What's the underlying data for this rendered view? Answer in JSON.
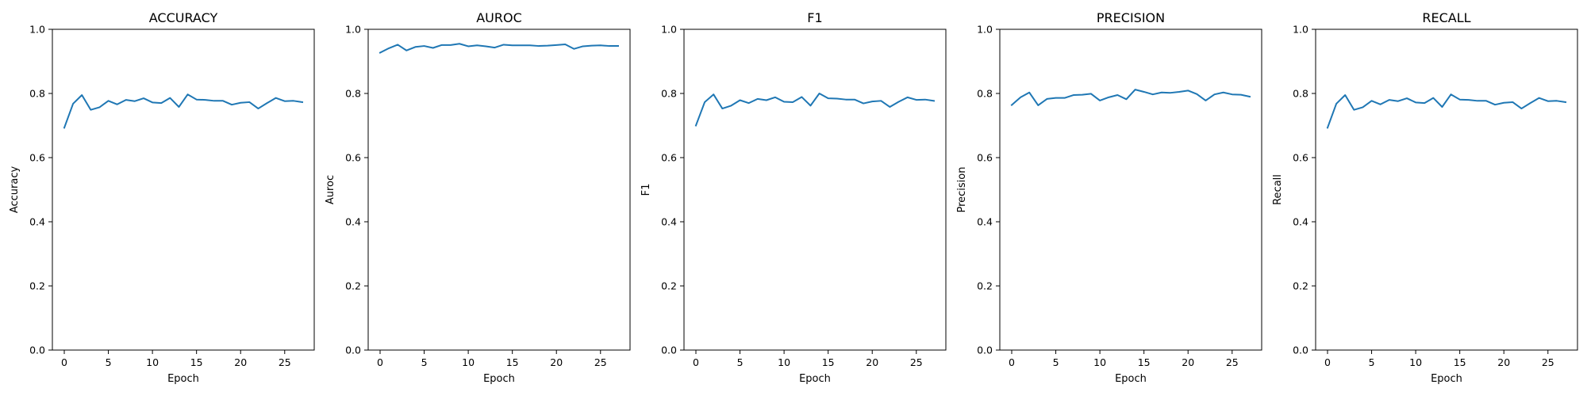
{
  "chart_data": [
    {
      "type": "line",
      "title": "ACCURACY",
      "xlabel": "Epoch",
      "ylabel": "Accuracy",
      "xlim": [
        -1.35,
        28.35
      ],
      "ylim": [
        0.0,
        1.0
      ],
      "xticks": [
        0,
        5,
        10,
        15,
        20,
        25
      ],
      "yticks": [
        0.0,
        0.2,
        0.4,
        0.6,
        0.8,
        1.0
      ],
      "grid": false,
      "color": "#1f77b4",
      "x": [
        0,
        1,
        2,
        3,
        4,
        5,
        6,
        7,
        8,
        9,
        10,
        11,
        12,
        13,
        14,
        15,
        16,
        17,
        18,
        19,
        20,
        21,
        22,
        23,
        24,
        25,
        26,
        27
      ],
      "y": [
        0.693,
        0.768,
        0.795,
        0.749,
        0.757,
        0.777,
        0.766,
        0.78,
        0.776,
        0.785,
        0.772,
        0.77,
        0.786,
        0.758,
        0.797,
        0.781,
        0.78,
        0.777,
        0.777,
        0.765,
        0.771,
        0.773,
        0.753,
        0.77,
        0.786,
        0.776,
        0.777,
        0.773
      ]
    },
    {
      "type": "line",
      "title": "AUROC",
      "xlabel": "Epoch",
      "ylabel": "Auroc",
      "xlim": [
        -1.35,
        28.35
      ],
      "ylim": [
        0.0,
        1.0
      ],
      "xticks": [
        0,
        5,
        10,
        15,
        20,
        25
      ],
      "yticks": [
        0.0,
        0.2,
        0.4,
        0.6,
        0.8,
        1.0
      ],
      "grid": false,
      "color": "#1f77b4",
      "x": [
        0,
        1,
        2,
        3,
        4,
        5,
        6,
        7,
        8,
        9,
        10,
        11,
        12,
        13,
        14,
        15,
        16,
        17,
        18,
        19,
        20,
        21,
        22,
        23,
        24,
        25,
        26,
        27
      ],
      "y": [
        0.927,
        0.941,
        0.952,
        0.934,
        0.945,
        0.948,
        0.942,
        0.951,
        0.951,
        0.955,
        0.947,
        0.95,
        0.947,
        0.943,
        0.952,
        0.95,
        0.95,
        0.95,
        0.948,
        0.949,
        0.951,
        0.953,
        0.939,
        0.947,
        0.949,
        0.95,
        0.948,
        0.948
      ]
    },
    {
      "type": "line",
      "title": "F1",
      "xlabel": "Epoch",
      "ylabel": "F1",
      "xlim": [
        -1.35,
        28.35
      ],
      "ylim": [
        0.0,
        1.0
      ],
      "xticks": [
        0,
        5,
        10,
        15,
        20,
        25
      ],
      "yticks": [
        0.0,
        0.2,
        0.4,
        0.6,
        0.8,
        1.0
      ],
      "grid": false,
      "color": "#1f77b4",
      "x": [
        0,
        1,
        2,
        3,
        4,
        5,
        6,
        7,
        8,
        9,
        10,
        11,
        12,
        13,
        14,
        15,
        16,
        17,
        18,
        19,
        20,
        21,
        22,
        23,
        24,
        25,
        26,
        27
      ],
      "y": [
        0.7,
        0.773,
        0.797,
        0.753,
        0.762,
        0.779,
        0.77,
        0.783,
        0.779,
        0.788,
        0.774,
        0.773,
        0.789,
        0.762,
        0.8,
        0.785,
        0.784,
        0.781,
        0.781,
        0.769,
        0.775,
        0.777,
        0.758,
        0.774,
        0.788,
        0.78,
        0.781,
        0.777
      ]
    },
    {
      "type": "line",
      "title": "PRECISION",
      "xlabel": "Epoch",
      "ylabel": "Precision",
      "xlim": [
        -1.35,
        28.35
      ],
      "ylim": [
        0.0,
        1.0
      ],
      "xticks": [
        0,
        5,
        10,
        15,
        20,
        25
      ],
      "yticks": [
        0.0,
        0.2,
        0.4,
        0.6,
        0.8,
        1.0
      ],
      "grid": false,
      "color": "#1f77b4",
      "x": [
        0,
        1,
        2,
        3,
        4,
        5,
        6,
        7,
        8,
        9,
        10,
        11,
        12,
        13,
        14,
        15,
        16,
        17,
        18,
        19,
        20,
        21,
        22,
        23,
        24,
        25,
        26,
        27
      ],
      "y": [
        0.764,
        0.788,
        0.803,
        0.763,
        0.783,
        0.786,
        0.786,
        0.795,
        0.796,
        0.799,
        0.778,
        0.788,
        0.795,
        0.782,
        0.812,
        0.805,
        0.797,
        0.803,
        0.802,
        0.805,
        0.809,
        0.798,
        0.778,
        0.797,
        0.803,
        0.797,
        0.796,
        0.79
      ]
    },
    {
      "type": "line",
      "title": "RECALL",
      "xlabel": "Epoch",
      "ylabel": "Recall",
      "xlim": [
        -1.35,
        28.35
      ],
      "ylim": [
        0.0,
        1.0
      ],
      "xticks": [
        0,
        5,
        10,
        15,
        20,
        25
      ],
      "yticks": [
        0.0,
        0.2,
        0.4,
        0.6,
        0.8,
        1.0
      ],
      "grid": false,
      "color": "#1f77b4",
      "x": [
        0,
        1,
        2,
        3,
        4,
        5,
        6,
        7,
        8,
        9,
        10,
        11,
        12,
        13,
        14,
        15,
        16,
        17,
        18,
        19,
        20,
        21,
        22,
        23,
        24,
        25,
        26,
        27
      ],
      "y": [
        0.693,
        0.768,
        0.795,
        0.749,
        0.757,
        0.777,
        0.766,
        0.78,
        0.776,
        0.785,
        0.772,
        0.77,
        0.786,
        0.758,
        0.797,
        0.781,
        0.78,
        0.777,
        0.777,
        0.765,
        0.771,
        0.773,
        0.753,
        0.77,
        0.786,
        0.776,
        0.777,
        0.773
      ]
    }
  ]
}
